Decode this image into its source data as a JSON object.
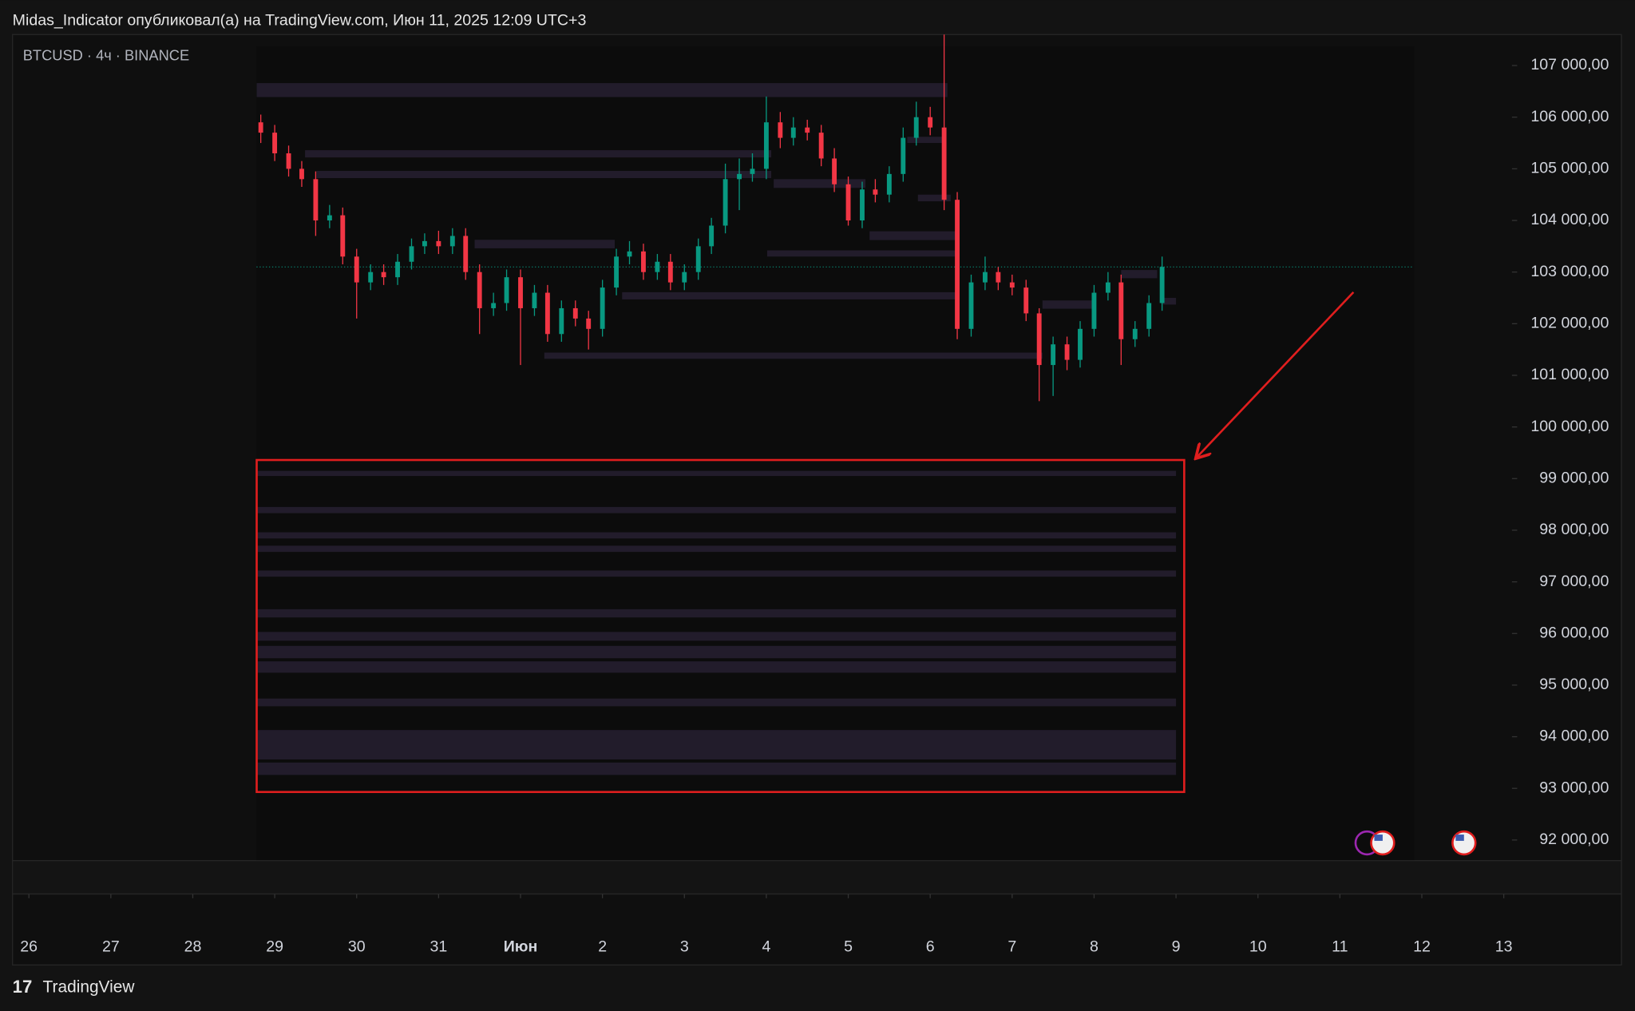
{
  "header": "Midas_Indicator опубликовал(а) на TradingView.com, Июн 11, 2025 12:09 UTC+3",
  "footer": "TradingView",
  "chart_data": {
    "type": "candlestick",
    "title": "BTCUSD · 4ч · BINANCE",
    "up_color": "#089981",
    "down_color": "#f23645",
    "zone_color": "#2a2236",
    "last_price_line": true,
    "x": [
      28.83,
      29,
      29.17,
      29.33,
      29.5,
      29.67,
      29.83,
      30,
      30.17,
      30.33,
      30.5,
      30.67,
      30.83,
      31,
      31.17,
      31.33,
      31.5,
      31.67,
      31.83,
      32,
      32.17,
      32.33,
      32.5,
      32.67,
      32.83,
      33,
      33.17,
      33.33,
      33.5,
      33.67,
      33.83,
      34,
      34.17,
      34.33,
      34.5,
      34.67,
      34.83,
      35,
      35.17,
      35.33,
      35.5,
      35.67,
      35.83,
      36,
      36.17,
      36.33,
      36.5,
      36.67,
      36.83,
      37,
      37.17,
      37.33,
      37.5,
      37.67,
      37.83,
      38,
      38.17,
      38.33,
      38.5,
      38.67,
      38.83,
      39,
      39.17,
      39.33,
      39.5,
      39.67,
      39.83
    ],
    "open": [
      105900,
      105700,
      105300,
      105000,
      104800,
      104000,
      104100,
      103300,
      102800,
      103000,
      102900,
      103200,
      103500,
      103600,
      103500,
      103700,
      103000,
      102300,
      102400,
      102900,
      102300,
      102600,
      101800,
      102300,
      102100,
      101900,
      102700,
      103300,
      103400,
      103000,
      103200,
      102800,
      103000,
      103500,
      103900,
      104800,
      104900,
      105000,
      105900,
      105600,
      105800,
      105700,
      105200,
      104700,
      104000,
      104600,
      104500,
      104900,
      105600,
      106000,
      105800,
      104400,
      101900,
      102800,
      103000,
      102800,
      102700,
      102200,
      101200,
      101600,
      101300,
      101900,
      102600,
      102800,
      101700,
      101900,
      102400
    ],
    "high": [
      106050,
      105850,
      105450,
      105150,
      104950,
      104300,
      104250,
      103450,
      103150,
      103150,
      103350,
      103650,
      103750,
      103800,
      103850,
      103850,
      103150,
      102600,
      103050,
      103050,
      102750,
      102750,
      102450,
      102450,
      102250,
      102850,
      103450,
      103600,
      103550,
      103350,
      103350,
      103150,
      103650,
      104050,
      105100,
      105200,
      105300,
      106400,
      106100,
      106000,
      105950,
      105850,
      105400,
      104850,
      104750,
      104800,
      105050,
      105800,
      106300,
      106200,
      107600,
      104550,
      102950,
      103300,
      103100,
      102950,
      102850,
      102300,
      101750,
      101750,
      102050,
      102750,
      103000,
      102950,
      102050,
      102550,
      103300
    ],
    "low": [
      105500,
      105150,
      104850,
      104650,
      103700,
      103850,
      103150,
      102100,
      102650,
      102750,
      102750,
      103050,
      103350,
      103350,
      103350,
      102850,
      101800,
      102150,
      102250,
      101200,
      102150,
      101650,
      101650,
      101950,
      101500,
      101750,
      102550,
      103150,
      102850,
      102850,
      102650,
      102650,
      102850,
      103350,
      103750,
      104200,
      104750,
      104800,
      105400,
      105450,
      105550,
      105050,
      104550,
      103900,
      103850,
      104350,
      104350,
      104750,
      105450,
      105650,
      104200,
      101700,
      101750,
      102650,
      102650,
      102550,
      102050,
      100500,
      100600,
      101100,
      101150,
      101750,
      102450,
      101200,
      101550,
      101750,
      102250
    ],
    "close": [
      105700,
      105300,
      105000,
      104800,
      104000,
      104100,
      103300,
      102800,
      103000,
      102900,
      103200,
      103500,
      103600,
      103500,
      103700,
      103000,
      102300,
      102400,
      102900,
      102300,
      102600,
      101800,
      102300,
      102100,
      101900,
      102700,
      103300,
      103400,
      103000,
      103200,
      102800,
      103000,
      103500,
      103900,
      104800,
      104900,
      105000,
      105900,
      105600,
      105800,
      105700,
      105200,
      104700,
      104000,
      104600,
      104500,
      104900,
      105600,
      106000,
      105800,
      104400,
      101900,
      102800,
      103000,
      102800,
      102700,
      102200,
      101200,
      101600,
      101300,
      101900,
      102600,
      102800,
      101700,
      101900,
      102400,
      103100
    ],
    "zones": [
      {
        "x": [
          28.78,
          37.21
        ],
        "y": [
          106390,
          106660
        ]
      },
      {
        "x": [
          29.37,
          35.06
        ],
        "y": [
          105220,
          105360
        ]
      },
      {
        "x": [
          29.51,
          35.06
        ],
        "y": [
          104820,
          104960
        ]
      },
      {
        "x": [
          31.44,
          33.15
        ],
        "y": [
          103460,
          103625
        ]
      },
      {
        "x": [
          33.24,
          37.35
        ],
        "y": [
          102470,
          102610
        ]
      },
      {
        "x": [
          32.29,
          38.37
        ],
        "y": [
          101320,
          101440
        ]
      },
      {
        "x": [
          35.01,
          37.33
        ],
        "y": [
          103300,
          103420
        ]
      },
      {
        "x": [
          36.26,
          37.33
        ],
        "y": [
          103620,
          103790
        ]
      },
      {
        "x": [
          35.09,
          36.21
        ],
        "y": [
          104630,
          104800
        ]
      },
      {
        "x": [
          38.37,
          39.01
        ],
        "y": [
          102290,
          102450
        ]
      },
      {
        "x": [
          39.33,
          39.77
        ],
        "y": [
          102880,
          103040
        ]
      },
      {
        "x": [
          39.84,
          40
        ],
        "y": [
          102370,
          102500
        ]
      },
      {
        "x": [
          36.85,
          37.25
        ],
        "y": [
          104370,
          104500
        ]
      },
      {
        "x": [
          36.72,
          37.16
        ],
        "y": [
          105500,
          105620
        ]
      },
      {
        "x": [
          28.78,
          40
        ],
        "y": [
          99050,
          99150
        ]
      },
      {
        "x": [
          28.78,
          40
        ],
        "y": [
          98330,
          98450
        ]
      },
      {
        "x": [
          28.78,
          40
        ],
        "y": [
          97840,
          97960
        ]
      },
      {
        "x": [
          28.78,
          40
        ],
        "y": [
          97580,
          97700
        ]
      },
      {
        "x": [
          28.78,
          40
        ],
        "y": [
          97100,
          97220
        ]
      },
      {
        "x": [
          28.78,
          40
        ],
        "y": [
          96310,
          96470
        ]
      },
      {
        "x": [
          28.78,
          40
        ],
        "y": [
          95860,
          96030
        ]
      },
      {
        "x": [
          28.78,
          40
        ],
        "y": [
          95520,
          95760
        ]
      },
      {
        "x": [
          28.78,
          40
        ],
        "y": [
          95240,
          95460
        ]
      },
      {
        "x": [
          28.78,
          40
        ],
        "y": [
          94590,
          94740
        ]
      },
      {
        "x": [
          28.78,
          40
        ],
        "y": [
          93560,
          94130
        ]
      },
      {
        "x": [
          28.78,
          40
        ],
        "y": [
          93260,
          93500
        ]
      }
    ],
    "highlight": {
      "x": [
        28.78,
        40.1
      ],
      "y": [
        92930,
        99360
      ],
      "color": "#e01e1e"
    },
    "xlim": [
      25.8,
      44.1
    ],
    "ylim": [
      91600,
      107600
    ],
    "xticks": [
      26,
      27,
      28,
      29,
      30,
      31,
      {
        "value": 32,
        "label": "Июн"
      },
      {
        "value": 33,
        "label": "2"
      },
      {
        "value": 34,
        "label": "3"
      },
      {
        "value": 35,
        "label": "4"
      },
      {
        "value": 36,
        "label": "5"
      },
      {
        "value": 37,
        "label": "6"
      },
      {
        "value": 38,
        "label": "7"
      },
      {
        "value": 39,
        "label": "8"
      },
      {
        "value": 40,
        "label": "9"
      },
      {
        "value": 41,
        "label": "10"
      },
      {
        "value": 42,
        "label": "11"
      },
      {
        "value": 43,
        "label": "12"
      },
      {
        "value": 44,
        "label": "13"
      }
    ],
    "yticks": [
      {
        "value": 92000,
        "label": "92 000,00"
      },
      {
        "value": 93000,
        "label": "93 000,00"
      },
      {
        "value": 94000,
        "label": "94 000,00"
      },
      {
        "value": 95000,
        "label": "95 000,00"
      },
      {
        "value": 96000,
        "label": "96 000,00"
      },
      {
        "value": 97000,
        "label": "97 000,00"
      },
      {
        "value": 98000,
        "label": "98 000,00"
      },
      {
        "value": 99000,
        "label": "99 000,00"
      },
      {
        "value": 100000,
        "label": "100 000,00"
      },
      {
        "value": 101000,
        "label": "101 000,00"
      },
      {
        "value": 102000,
        "label": "102 000,00"
      },
      {
        "value": 103000,
        "label": "103 000,00"
      },
      {
        "value": 104000,
        "label": "104 000,00"
      },
      {
        "value": 105000,
        "label": "105 000,00"
      },
      {
        "value": 106000,
        "label": "106 000,00"
      },
      {
        "value": 107000,
        "label": "107 000,00"
      }
    ]
  }
}
